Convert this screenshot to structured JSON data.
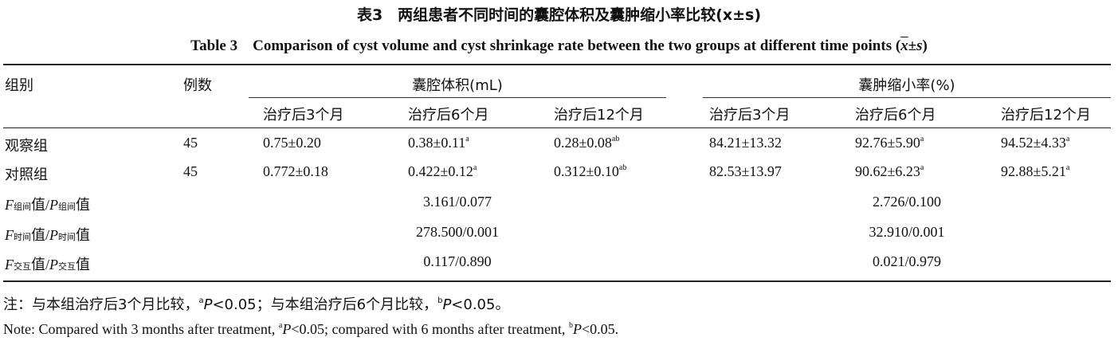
{
  "title_cn": "表3　两组患者不同时间的囊腔体积及囊肿缩小率比较(x±s)",
  "title_en_main": "Table 3　Comparison of cyst volume and cyst shrinkage rate between the two groups at different time points (",
  "title_en_x": "x",
  "title_en_pm": "±",
  "title_en_s": "s",
  "title_en_close": ")",
  "headers": {
    "group": "组别",
    "cases": "例数",
    "volume": "囊腔体积(mL)",
    "shrinkage": "囊肿缩小率(%)",
    "times": [
      "治疗后3个月",
      "治疗后6个月",
      "治疗后12个月",
      "治疗后3个月",
      "治疗后6个月",
      "治疗后12个月"
    ]
  },
  "rows": [
    {
      "group": "观察组",
      "n": "45",
      "cells": [
        {
          "v": "0.75±0.20",
          "sup": ""
        },
        {
          "v": "0.38±0.11",
          "sup": "a"
        },
        {
          "v": "0.28±0.08",
          "sup": "ab"
        },
        {
          "v": "84.21±13.32",
          "sup": ""
        },
        {
          "v": "92.76±5.90",
          "sup": "a"
        },
        {
          "v": "94.52±4.33",
          "sup": "a"
        }
      ]
    },
    {
      "group": "对照组",
      "n": "45",
      "cells": [
        {
          "v": "0.772±0.18",
          "sup": ""
        },
        {
          "v": "0.422±0.12",
          "sup": "a"
        },
        {
          "v": "0.312±0.10",
          "sup": "ab"
        },
        {
          "v": "82.53±13.97",
          "sup": ""
        },
        {
          "v": "90.62±6.23",
          "sup": "a"
        },
        {
          "v": "92.88±5.21",
          "sup": "a"
        }
      ]
    }
  ],
  "stats": [
    {
      "sub": "组间",
      "volume": "3.161/0.077",
      "shrinkage": "2.726/0.100"
    },
    {
      "sub": "时间",
      "volume": "278.500/0.001",
      "shrinkage": "32.910/0.001"
    },
    {
      "sub": "交互",
      "volume": "0.117/0.890",
      "shrinkage": "0.021/0.979"
    }
  ],
  "stat_labels": {
    "F": "F",
    "P": "P",
    "value": "值",
    "slash": "/"
  },
  "note_cn": {
    "prefix": "注：与本组治疗后3个月比较，",
    "sup_a": "a",
    "p": "P",
    "mid": "<0.05；与本组治疗后6个月比较，",
    "sup_b": "b",
    "end": "<0.05。"
  },
  "note_en": {
    "prefix": "Note: Compared with 3 months after treatment, ",
    "sup_a": "a",
    "p": "P",
    "mid": "<0.05; compared with 6 months after treatment, ",
    "sup_b": "b",
    "end": "<0.05."
  }
}
